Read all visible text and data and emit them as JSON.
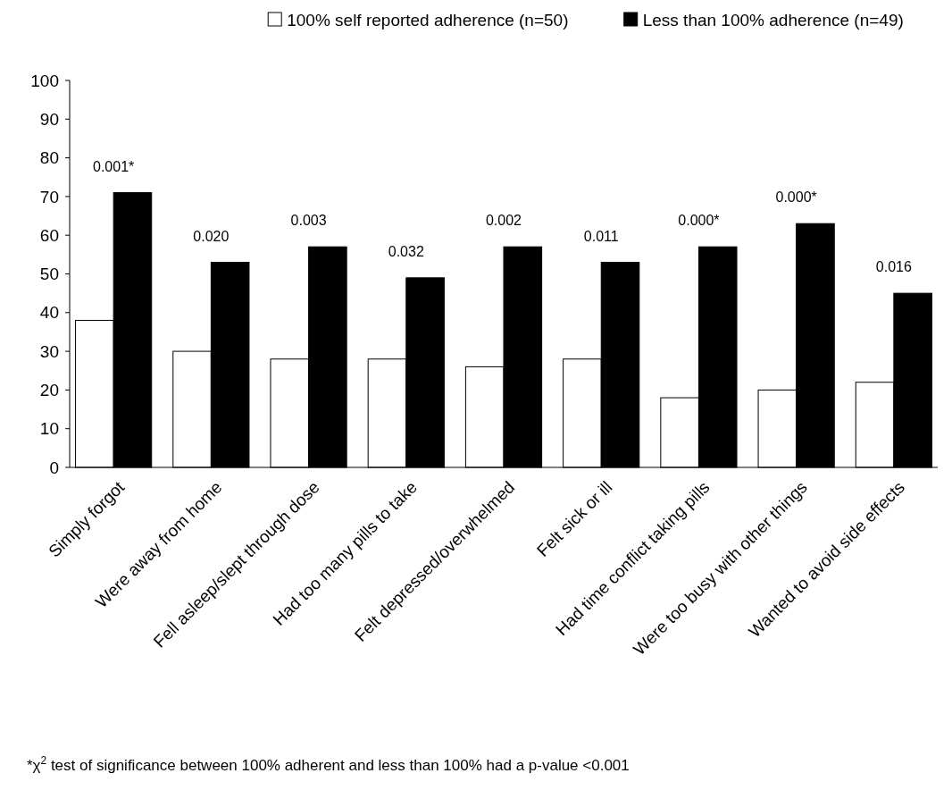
{
  "chart_data": {
    "type": "bar",
    "categories": [
      "Simply forgot",
      "Were away from home",
      "Fell asleep/slept through dose",
      "Had too many pills to take",
      "Felt depressed/overwhelmed",
      "Felt sick or ill",
      "Had time conflict taking pills",
      "Were too busy with other things",
      "Wanted to avoid side effects"
    ],
    "series": [
      {
        "name": "100% self reported adherence (n=50)",
        "color": "#ffffff",
        "values": [
          38,
          30,
          28,
          28,
          26,
          28,
          18,
          20,
          22
        ]
      },
      {
        "name": "Less than 100% adherence (n=49)",
        "color": "#000000",
        "values": [
          71,
          53,
          57,
          49,
          57,
          53,
          57,
          63,
          45
        ]
      }
    ],
    "ylim": [
      0,
      100
    ],
    "yticks": [
      0,
      10,
      20,
      30,
      40,
      50,
      60,
      70,
      80,
      90,
      100
    ],
    "grid": false,
    "legend": "top right",
    "annotations": [
      {
        "text": "0.001*",
        "x": "Simply forgot",
        "y": 71
      },
      {
        "text": "0.020",
        "x": "Were away from home",
        "y": 53
      },
      {
        "text": "0.003",
        "x": "Fell asleep/slept through dose",
        "y": 57
      },
      {
        "text": "0.032",
        "x": "Had too many pills to take",
        "y": 49
      },
      {
        "text": "0.002",
        "x": "Felt depressed/overwhelmed",
        "y": 57
      },
      {
        "text": "0.011",
        "x": "Felt sick or ill",
        "y": 53
      },
      {
        "text": "0.000*",
        "x": "Had time conflict taking pills",
        "y": 57
      },
      {
        "text": "0.000*",
        "x": "Were too busy with other things",
        "y": 63
      },
      {
        "text": "0.016",
        "x": "Wanted to avoid side effects",
        "y": 45
      },
      "*χ$^{2}$ test of significance between 100% adherent and less than 100%  had a p-value <0.001"
    ]
  }
}
